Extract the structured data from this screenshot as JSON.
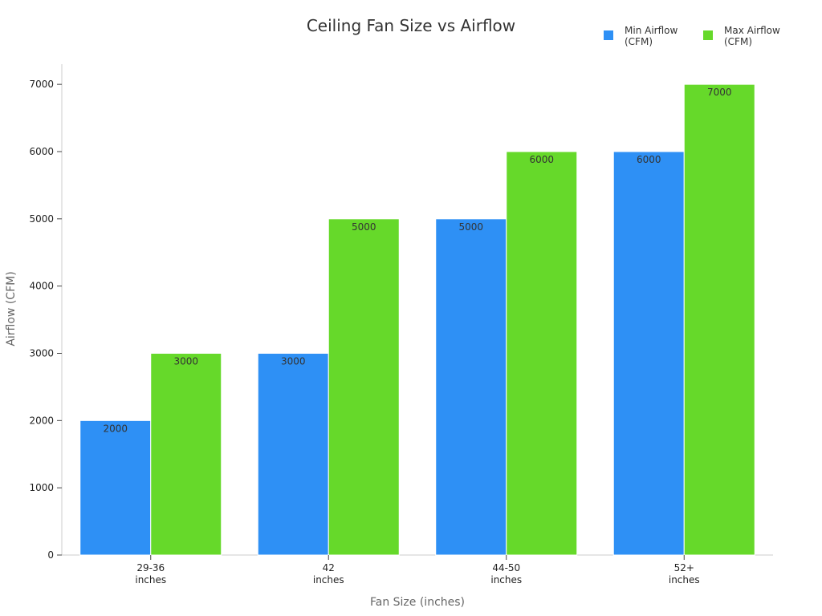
{
  "chart_data": {
    "type": "bar",
    "title": "Ceiling Fan Size vs Airflow",
    "xlabel": "Fan Size (inches)",
    "ylabel": "Airflow (CFM)",
    "categories": [
      [
        "29-36",
        "inches"
      ],
      [
        "42",
        "inches"
      ],
      [
        "44-50",
        "inches"
      ],
      [
        "52+",
        "inches"
      ]
    ],
    "series": [
      {
        "name": "Min Airflow (CFM)",
        "name_lines": [
          "Min Airflow",
          "(CFM)"
        ],
        "color": "#2e90f5",
        "values": [
          2000,
          3000,
          5000,
          6000
        ]
      },
      {
        "name": "Max Airflow (CFM)",
        "name_lines": [
          "Max Airflow",
          "(CFM)"
        ],
        "color": "#66d92a",
        "values": [
          3000,
          5000,
          6000,
          7000
        ]
      }
    ],
    "ylim": [
      0,
      7300
    ],
    "yticks": [
      0,
      1000,
      2000,
      3000,
      4000,
      5000,
      6000,
      7000
    ],
    "grid": false,
    "legend_position": "top-right",
    "data_labels": true
  }
}
